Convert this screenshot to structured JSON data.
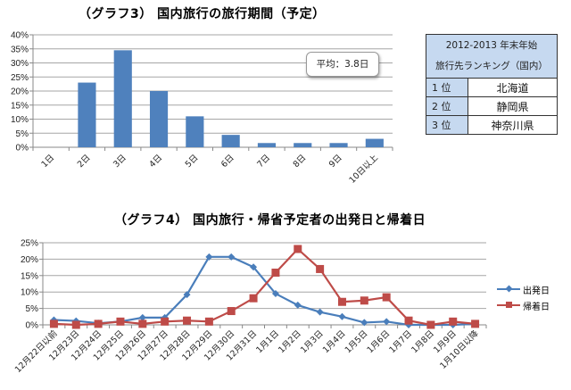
{
  "chart_data": [
    {
      "type": "bar",
      "title": "（グラフ3） 国内旅行の旅行期間（予定）",
      "categories": [
        "1日",
        "2日",
        "3日",
        "4日",
        "5日",
        "6日",
        "7日",
        "8日",
        "9日",
        "10日以上"
      ],
      "values": [
        0,
        23,
        34.5,
        20,
        11,
        4.4,
        1.5,
        1.5,
        1.5,
        3
      ],
      "unit": "%",
      "ylim": [
        0,
        40
      ],
      "yticks": [
        "0%",
        "5%",
        "10%",
        "15%",
        "20%",
        "25%",
        "30%",
        "35%",
        "40%"
      ],
      "grid": true,
      "color": "#4f81bd",
      "annotation": "平均：3.8日",
      "xlabel": "",
      "ylabel": ""
    },
    {
      "type": "line",
      "title": "（グラフ4） 国内旅行・帰省予定者の出発日と帰着日",
      "categories": [
        "12月22日以前",
        "12月23日",
        "12月24日",
        "12月25日",
        "12月26日",
        "12月27日",
        "12月28日",
        "12月29日",
        "12月30日",
        "12月31日",
        "1月1日",
        "1月2日",
        "1月3日",
        "1月4日",
        "1月5日",
        "1月6日",
        "1月7日",
        "1月8日",
        "1月9日",
        "1月10日以降"
      ],
      "series": [
        {
          "name": "出発日",
          "color": "#4a7ebb",
          "marker": "diamond",
          "values": [
            1.5,
            1.2,
            0.5,
            1.0,
            2.2,
            2.2,
            9.2,
            20.7,
            20.7,
            17.6,
            9.5,
            6.0,
            3.9,
            2.5,
            0.7,
            1.0,
            0,
            0,
            0,
            0.3
          ]
        },
        {
          "name": "帰着日",
          "color": "#be4b48",
          "marker": "square",
          "values": [
            0.3,
            0,
            0.3,
            1.0,
            0.3,
            1.0,
            1.3,
            1.0,
            4.2,
            8.1,
            15.9,
            23.1,
            17.0,
            7.0,
            7.4,
            8.4,
            1.3,
            0,
            1.0,
            0.3
          ]
        }
      ],
      "unit": "%",
      "ylim": [
        0,
        25
      ],
      "yticks": [
        "0%",
        "5%",
        "10%",
        "15%",
        "20%",
        "25%"
      ],
      "grid": true,
      "legend_position": "right",
      "xlabel": "",
      "ylabel": ""
    }
  ],
  "chart3": {
    "title": "（グラフ3） 国内旅行の旅行期間（予定）",
    "callout": "平均：3.8日"
  },
  "chart4": {
    "title": "（グラフ4） 国内旅行・帰省予定者の出発日と帰着日",
    "legend": [
      "出発日",
      "帰着日"
    ]
  },
  "ranking": {
    "header_line1": "2012-2013  年末年始",
    "header_line2": "旅行先ランキング（国内）",
    "rows": [
      {
        "rank": "1 位",
        "place": "北海道"
      },
      {
        "rank": "2 位",
        "place": "静岡県"
      },
      {
        "rank": "3 位",
        "place": "神奈川県"
      }
    ]
  }
}
